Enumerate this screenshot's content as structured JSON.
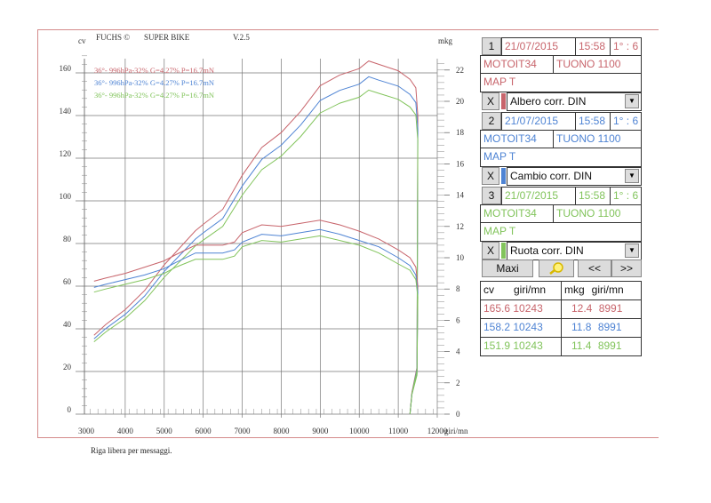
{
  "header": {
    "cv_label": "cv",
    "brand": "FUCHS ©",
    "product": "SUPER BIKE",
    "version": "V.2.5",
    "mkg_label": "mkg"
  },
  "footer": {
    "message": "Riga libera per messaggi."
  },
  "colors": {
    "run1": "#c8656c",
    "run2": "#4f84d4",
    "run3": "#82c45c"
  },
  "runs": [
    {
      "num": "1",
      "date": "21/07/2015",
      "time": "15:58",
      "ratio": "1° : 6",
      "user": "MOTOIT34",
      "model": "TUONO 1100",
      "map": "MAP T",
      "close": "X",
      "mode": "Albero corr. DIN",
      "color": "#c8656c"
    },
    {
      "num": "2",
      "date": "21/07/2015",
      "time": "15:58",
      "ratio": "1° : 6",
      "user": "MOTOIT34",
      "model": "TUONO 1100",
      "map": "MAP T",
      "close": "X",
      "mode": "Cambio corr. DIN",
      "color": "#4f84d4"
    },
    {
      "num": "3",
      "date": "21/07/2015",
      "time": "15:58",
      "ratio": "1° : 6",
      "user": "MOTOIT34",
      "model": "TUONO 1100",
      "map": "MAP T",
      "close": "X",
      "mode": "Ruota corr. DIN",
      "color": "#82c45c"
    }
  ],
  "buttons": {
    "maxi": "Maxi",
    "zoom_icon": "magnifier-icon",
    "prev": "<<",
    "next": ">>"
  },
  "max_table": {
    "headers": [
      "cv",
      "giri/mn",
      "mkg",
      "giri/mn"
    ],
    "rows": [
      {
        "cv": "165.6",
        "cv_rpm": "10243",
        "mkg": "12.4",
        "mkg_rpm": "8991"
      },
      {
        "cv": "158.2",
        "cv_rpm": "10243",
        "mkg": "11.8",
        "mkg_rpm": "8991"
      },
      {
        "cv": "151.9",
        "cv_rpm": "10243",
        "mkg": "11.4",
        "mkg_rpm": "8991"
      }
    ]
  },
  "chart_data": {
    "type": "line",
    "xlabel": "giri/mn",
    "ylabel": "cv",
    "y2label": "mkg",
    "xlim": [
      3000,
      12000
    ],
    "ylim": [
      0,
      160
    ],
    "y2lim": [
      0,
      22
    ],
    "x_ticks": [
      "3000",
      "4000",
      "5000",
      "6000",
      "7000",
      "8000",
      "9000",
      "10000",
      "11000",
      "12000"
    ],
    "y_ticks": [
      "0",
      "20",
      "40",
      "60",
      "80",
      "100",
      "120",
      "140",
      "160"
    ],
    "y2_ticks": [
      "0",
      "2",
      "4",
      "6",
      "8",
      "10",
      "12",
      "14",
      "16",
      "18",
      "20",
      "22"
    ],
    "grid": true,
    "legend_position": "top-left",
    "legend": [
      "36°- 996hPa-32% G=4.27% P=16.7mN",
      "36°- 996hPa-32% G=4.27% P=16.7mN",
      "36°- 996hPa-32% G=4.27% P=16.7mN"
    ],
    "power_x": [
      3200,
      3500,
      4000,
      4500,
      5000,
      5500,
      5800,
      6000,
      6500,
      7000,
      7500,
      8000,
      8500,
      9000,
      9500,
      10000,
      10243,
      10500,
      11000,
      11300,
      11450,
      11500,
      11480,
      11350,
      11300
    ],
    "torque_x": [
      3200,
      3500,
      4000,
      4500,
      5000,
      5300,
      5800,
      6500,
      6800,
      7000,
      7500,
      8000,
      8500,
      8991,
      9500,
      10000,
      10500,
      11000,
      11300,
      11450,
      11500,
      11480,
      11350,
      11300
    ],
    "series": [
      {
        "axis": "cv",
        "run": 1,
        "values": [
          37,
          42,
          49,
          58,
          70,
          80,
          86,
          89,
          96,
          112,
          125,
          132,
          142,
          154,
          159,
          162,
          165.6,
          164,
          161,
          157,
          153,
          140,
          20,
          10,
          0
        ]
      },
      {
        "axis": "cv",
        "run": 2,
        "values": [
          35.3,
          40.1,
          46.8,
          55.4,
          66.9,
          76.4,
          82.1,
          85,
          91.7,
          107,
          119.4,
          126.1,
          135.6,
          147.1,
          151.8,
          154.7,
          158.2,
          156.6,
          153.8,
          149.9,
          146.1,
          133.7,
          19.1,
          9.6,
          0
        ]
      },
      {
        "axis": "cv",
        "run": 3,
        "values": [
          33.9,
          38.5,
          44.9,
          53.2,
          64.2,
          73.4,
          78.9,
          81.6,
          88,
          102.7,
          114.6,
          121,
          130.2,
          141.2,
          145.8,
          148.6,
          151.9,
          150.4,
          147.6,
          144,
          140.3,
          128.4,
          18.3,
          9.2,
          0
        ]
      },
      {
        "axis": "mkg",
        "run": 1,
        "values": [
          8.5,
          8.7,
          9.0,
          9.4,
          9.8,
          10.2,
          10.8,
          10.8,
          11.0,
          11.6,
          12.1,
          12.0,
          12.2,
          12.4,
          12.1,
          11.7,
          11.2,
          10.5,
          10.0,
          9.4,
          8.2,
          3,
          1.4,
          0
        ]
      },
      {
        "axis": "mkg",
        "run": 2,
        "values": [
          8.1,
          8.3,
          8.6,
          8.9,
          9.3,
          9.7,
          10.3,
          10.3,
          10.5,
          11.0,
          11.5,
          11.4,
          11.6,
          11.8,
          11.5,
          11.1,
          10.7,
          10.0,
          9.5,
          8.9,
          7.8,
          2.9,
          1.3,
          0
        ]
      },
      {
        "axis": "mkg",
        "run": 3,
        "values": [
          7.8,
          8.0,
          8.3,
          8.6,
          9.0,
          9.4,
          9.9,
          9.9,
          10.1,
          10.7,
          11.1,
          11.0,
          11.2,
          11.4,
          11.1,
          10.8,
          10.3,
          9.6,
          9.2,
          8.6,
          7.5,
          2.8,
          1.3,
          0
        ]
      }
    ]
  }
}
